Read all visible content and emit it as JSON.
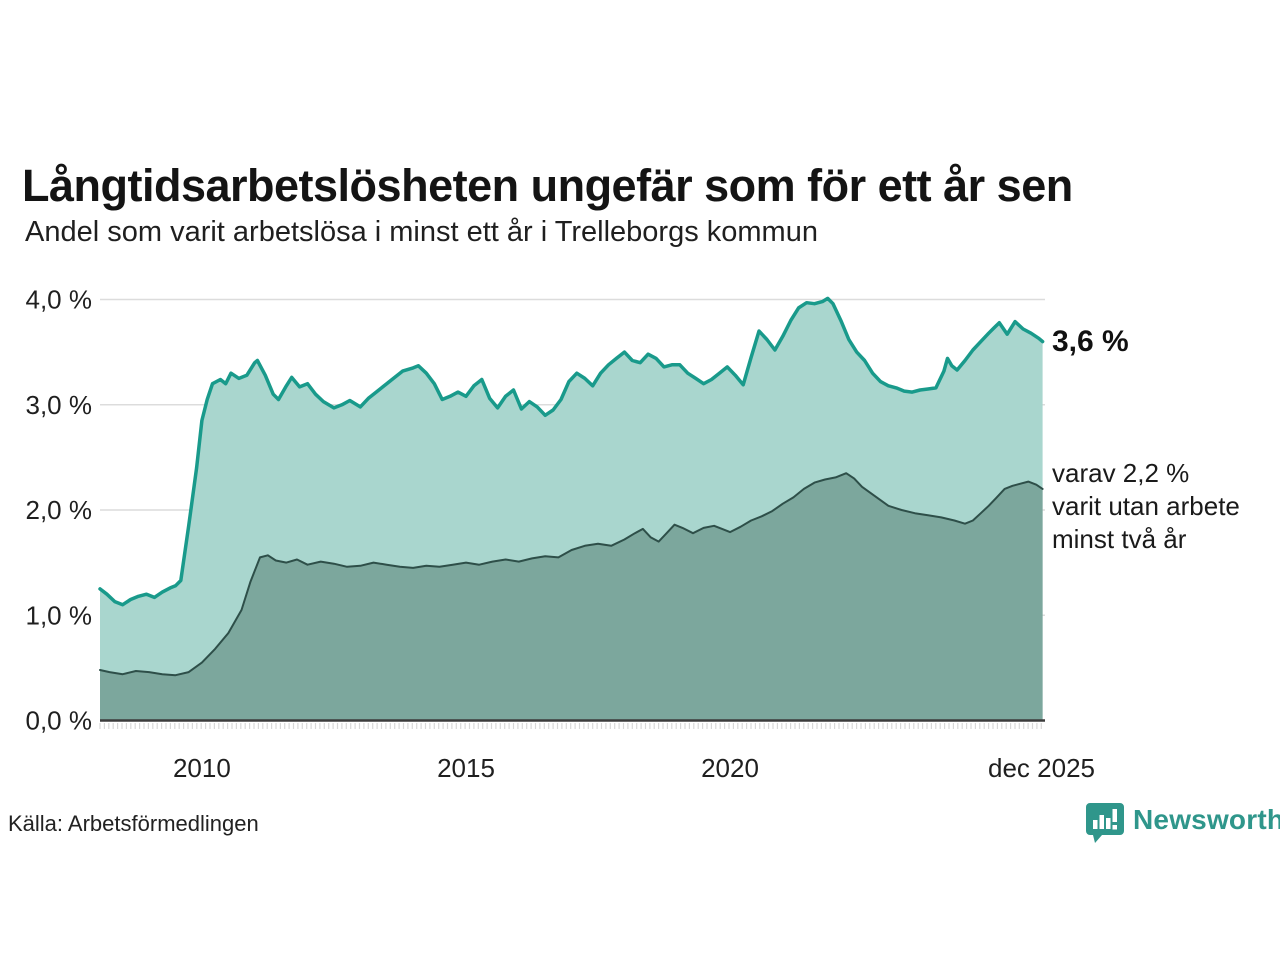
{
  "header": {
    "title": "Långtidsarbetslösheten ungefär som för ett år sen",
    "subtitle": "Andel som varit arbetslösa i minst ett år i Trelleborgs kommun"
  },
  "annotations": {
    "latest_total": "3,6 %",
    "latest_two_year": "varav 2,2 %\nvarit utan arbete\nminst två år"
  },
  "footer": {
    "source": "Källa: Arbetsförmedlingen",
    "brand": "Newsworthy",
    "brand_icon": "bar-chart-speech-bubble-icon"
  },
  "colors": {
    "line_total": "#199a8b",
    "fill_total": "#a9d6ce",
    "line_two_year": "#2e4f49",
    "fill_two_year": "#7ca79d",
    "grid": "#dcdcdc",
    "baseline": "#3c3c3c",
    "minor_tick": "#d8d8d8",
    "axis_text": "#1f1f1f",
    "brand": "#2f968b"
  },
  "chart_data": {
    "type": "area",
    "title": "Långtidsarbetslösheten ungefär som för ett år sen",
    "subtitle": "Andel som varit arbetslösa i minst ett år i Trelleborgs kommun",
    "ylabel": "",
    "xlabel": "",
    "grid": true,
    "legend_position": "right-edge-annotations",
    "x_axis": {
      "range": [
        2008.07,
        2025.92
      ],
      "ticks": [
        {
          "label": "2010",
          "year": 2010
        },
        {
          "label": "2015",
          "year": 2015
        },
        {
          "label": "2020",
          "year": 2020
        },
        {
          "label": "dec 2025",
          "year": 2025.9
        }
      ],
      "minor_tick_step_years": 0.0833
    },
    "y_axis": {
      "range": [
        0,
        4
      ],
      "ticks": [
        {
          "label": "0,0 %",
          "value": 0
        },
        {
          "label": "1,0 %",
          "value": 1
        },
        {
          "label": "2,0 %",
          "value": 2
        },
        {
          "label": "3,0 %",
          "value": 3
        },
        {
          "label": "4,0 %",
          "value": 4
        }
      ]
    },
    "series": [
      {
        "id": "minst_ett_ar",
        "label": "Andel som varit arbetslösa i minst ett år",
        "end_value_label": "3,6 %",
        "color": "#199a8b",
        "fill": "#a9d6ce",
        "stroke_width": 3.5,
        "points": [
          [
            2008.07,
            1.25
          ],
          [
            2008.2,
            1.2
          ],
          [
            2008.35,
            1.13
          ],
          [
            2008.5,
            1.1
          ],
          [
            2008.65,
            1.15
          ],
          [
            2008.8,
            1.18
          ],
          [
            2008.95,
            1.2
          ],
          [
            2009.1,
            1.17
          ],
          [
            2009.25,
            1.22
          ],
          [
            2009.4,
            1.26
          ],
          [
            2009.5,
            1.28
          ],
          [
            2009.6,
            1.33
          ],
          [
            2009.75,
            1.85
          ],
          [
            2009.9,
            2.4
          ],
          [
            2010.0,
            2.85
          ],
          [
            2010.1,
            3.05
          ],
          [
            2010.2,
            3.2
          ],
          [
            2010.35,
            3.24
          ],
          [
            2010.45,
            3.2
          ],
          [
            2010.55,
            3.3
          ],
          [
            2010.7,
            3.25
          ],
          [
            2010.85,
            3.28
          ],
          [
            2011.0,
            3.4
          ],
          [
            2011.05,
            3.42
          ],
          [
            2011.2,
            3.28
          ],
          [
            2011.35,
            3.1
          ],
          [
            2011.45,
            3.05
          ],
          [
            2011.6,
            3.18
          ],
          [
            2011.7,
            3.26
          ],
          [
            2011.85,
            3.17
          ],
          [
            2012.0,
            3.2
          ],
          [
            2012.15,
            3.1
          ],
          [
            2012.3,
            3.03
          ],
          [
            2012.5,
            2.97
          ],
          [
            2012.65,
            3.0
          ],
          [
            2012.8,
            3.04
          ],
          [
            2013.0,
            2.98
          ],
          [
            2013.15,
            3.06
          ],
          [
            2013.3,
            3.12
          ],
          [
            2013.5,
            3.2
          ],
          [
            2013.65,
            3.26
          ],
          [
            2013.8,
            3.32
          ],
          [
            2014.0,
            3.35
          ],
          [
            2014.1,
            3.37
          ],
          [
            2014.25,
            3.3
          ],
          [
            2014.4,
            3.2
          ],
          [
            2014.55,
            3.05
          ],
          [
            2014.7,
            3.08
          ],
          [
            2014.85,
            3.12
          ],
          [
            2015.0,
            3.08
          ],
          [
            2015.15,
            3.18
          ],
          [
            2015.3,
            3.24
          ],
          [
            2015.45,
            3.06
          ],
          [
            2015.6,
            2.97
          ],
          [
            2015.75,
            3.08
          ],
          [
            2015.9,
            3.14
          ],
          [
            2016.05,
            2.96
          ],
          [
            2016.2,
            3.03
          ],
          [
            2016.35,
            2.98
          ],
          [
            2016.5,
            2.9
          ],
          [
            2016.65,
            2.95
          ],
          [
            2016.8,
            3.05
          ],
          [
            2016.95,
            3.22
          ],
          [
            2017.1,
            3.3
          ],
          [
            2017.25,
            3.25
          ],
          [
            2017.4,
            3.18
          ],
          [
            2017.55,
            3.3
          ],
          [
            2017.7,
            3.38
          ],
          [
            2017.85,
            3.44
          ],
          [
            2018.0,
            3.5
          ],
          [
            2018.15,
            3.42
          ],
          [
            2018.3,
            3.4
          ],
          [
            2018.45,
            3.48
          ],
          [
            2018.6,
            3.44
          ],
          [
            2018.75,
            3.36
          ],
          [
            2018.9,
            3.38
          ],
          [
            2019.05,
            3.38
          ],
          [
            2019.2,
            3.3
          ],
          [
            2019.35,
            3.25
          ],
          [
            2019.5,
            3.2
          ],
          [
            2019.65,
            3.24
          ],
          [
            2019.8,
            3.3
          ],
          [
            2019.95,
            3.36
          ],
          [
            2020.1,
            3.28
          ],
          [
            2020.25,
            3.19
          ],
          [
            2020.4,
            3.45
          ],
          [
            2020.55,
            3.7
          ],
          [
            2020.7,
            3.62
          ],
          [
            2020.85,
            3.52
          ],
          [
            2021.0,
            3.65
          ],
          [
            2021.15,
            3.8
          ],
          [
            2021.3,
            3.92
          ],
          [
            2021.45,
            3.97
          ],
          [
            2021.6,
            3.96
          ],
          [
            2021.75,
            3.98
          ],
          [
            2021.85,
            4.01
          ],
          [
            2021.95,
            3.96
          ],
          [
            2022.1,
            3.8
          ],
          [
            2022.25,
            3.62
          ],
          [
            2022.4,
            3.5
          ],
          [
            2022.55,
            3.42
          ],
          [
            2022.7,
            3.3
          ],
          [
            2022.85,
            3.22
          ],
          [
            2023.0,
            3.18
          ],
          [
            2023.15,
            3.16
          ],
          [
            2023.3,
            3.13
          ],
          [
            2023.45,
            3.12
          ],
          [
            2023.6,
            3.14
          ],
          [
            2023.75,
            3.15
          ],
          [
            2023.9,
            3.16
          ],
          [
            2024.05,
            3.32
          ],
          [
            2024.12,
            3.44
          ],
          [
            2024.2,
            3.37
          ],
          [
            2024.3,
            3.33
          ],
          [
            2024.45,
            3.42
          ],
          [
            2024.6,
            3.52
          ],
          [
            2024.75,
            3.6
          ],
          [
            2024.9,
            3.68
          ],
          [
            2025.0,
            3.73
          ],
          [
            2025.1,
            3.78
          ],
          [
            2025.25,
            3.67
          ],
          [
            2025.4,
            3.79
          ],
          [
            2025.55,
            3.72
          ],
          [
            2025.7,
            3.68
          ],
          [
            2025.85,
            3.63
          ],
          [
            2025.92,
            3.6
          ]
        ]
      },
      {
        "id": "minst_tva_ar",
        "label": "varav varit utan arbete minst två år",
        "end_value_label": "varav 2,2 %",
        "color": "#2e4f49",
        "fill": "#7ca79d",
        "stroke_width": 2,
        "points": [
          [
            2008.07,
            0.48
          ],
          [
            2008.25,
            0.46
          ],
          [
            2008.5,
            0.44
          ],
          [
            2008.75,
            0.47
          ],
          [
            2009.0,
            0.46
          ],
          [
            2009.25,
            0.44
          ],
          [
            2009.5,
            0.43
          ],
          [
            2009.75,
            0.46
          ],
          [
            2010.0,
            0.55
          ],
          [
            2010.25,
            0.68
          ],
          [
            2010.5,
            0.83
          ],
          [
            2010.75,
            1.05
          ],
          [
            2010.92,
            1.32
          ],
          [
            2011.1,
            1.55
          ],
          [
            2011.25,
            1.57
          ],
          [
            2011.4,
            1.52
          ],
          [
            2011.6,
            1.5
          ],
          [
            2011.8,
            1.53
          ],
          [
            2012.0,
            1.48
          ],
          [
            2012.25,
            1.51
          ],
          [
            2012.5,
            1.49
          ],
          [
            2012.75,
            1.46
          ],
          [
            2013.0,
            1.47
          ],
          [
            2013.25,
            1.5
          ],
          [
            2013.5,
            1.48
          ],
          [
            2013.75,
            1.46
          ],
          [
            2014.0,
            1.45
          ],
          [
            2014.25,
            1.47
          ],
          [
            2014.5,
            1.46
          ],
          [
            2014.75,
            1.48
          ],
          [
            2015.0,
            1.5
          ],
          [
            2015.25,
            1.48
          ],
          [
            2015.5,
            1.51
          ],
          [
            2015.75,
            1.53
          ],
          [
            2016.0,
            1.51
          ],
          [
            2016.25,
            1.54
          ],
          [
            2016.5,
            1.56
          ],
          [
            2016.75,
            1.55
          ],
          [
            2017.0,
            1.62
          ],
          [
            2017.25,
            1.66
          ],
          [
            2017.5,
            1.68
          ],
          [
            2017.75,
            1.66
          ],
          [
            2018.0,
            1.72
          ],
          [
            2018.2,
            1.78
          ],
          [
            2018.35,
            1.82
          ],
          [
            2018.5,
            1.74
          ],
          [
            2018.65,
            1.7
          ],
          [
            2018.8,
            1.78
          ],
          [
            2018.95,
            1.86
          ],
          [
            2019.1,
            1.83
          ],
          [
            2019.3,
            1.78
          ],
          [
            2019.5,
            1.83
          ],
          [
            2019.7,
            1.85
          ],
          [
            2019.85,
            1.82
          ],
          [
            2020.0,
            1.79
          ],
          [
            2020.2,
            1.84
          ],
          [
            2020.4,
            1.9
          ],
          [
            2020.6,
            1.94
          ],
          [
            2020.8,
            1.99
          ],
          [
            2021.0,
            2.06
          ],
          [
            2021.2,
            2.12
          ],
          [
            2021.4,
            2.2
          ],
          [
            2021.6,
            2.26
          ],
          [
            2021.8,
            2.29
          ],
          [
            2022.0,
            2.31
          ],
          [
            2022.2,
            2.35
          ],
          [
            2022.35,
            2.3
          ],
          [
            2022.5,
            2.22
          ],
          [
            2022.75,
            2.13
          ],
          [
            2023.0,
            2.04
          ],
          [
            2023.25,
            2.0
          ],
          [
            2023.5,
            1.97
          ],
          [
            2023.75,
            1.95
          ],
          [
            2024.0,
            1.93
          ],
          [
            2024.25,
            1.9
          ],
          [
            2024.45,
            1.87
          ],
          [
            2024.6,
            1.9
          ],
          [
            2024.75,
            1.97
          ],
          [
            2024.9,
            2.04
          ],
          [
            2025.05,
            2.12
          ],
          [
            2025.2,
            2.2
          ],
          [
            2025.35,
            2.23
          ],
          [
            2025.5,
            2.25
          ],
          [
            2025.65,
            2.27
          ],
          [
            2025.8,
            2.24
          ],
          [
            2025.92,
            2.2
          ]
        ]
      }
    ]
  }
}
